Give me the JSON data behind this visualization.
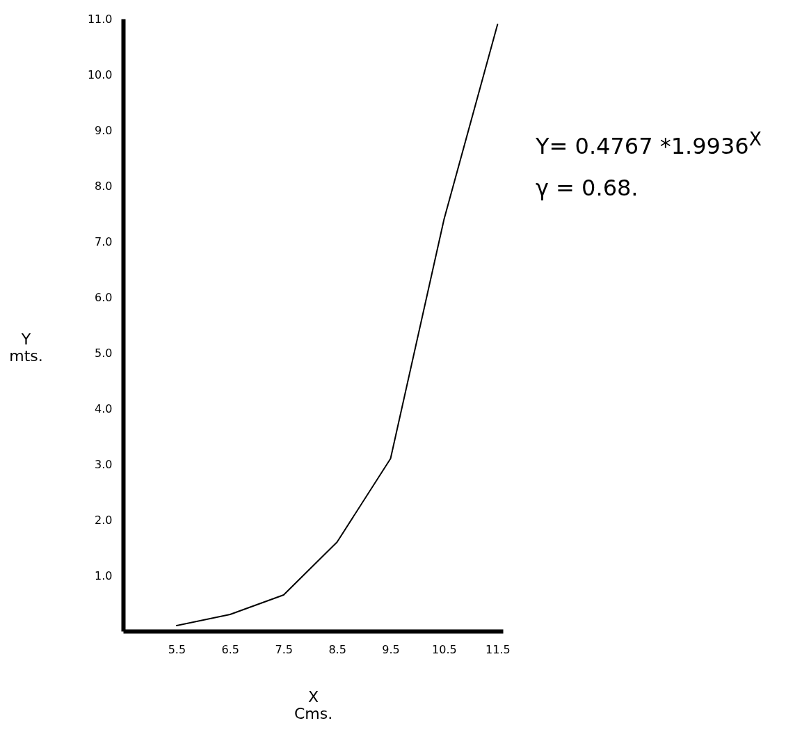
{
  "chart_data": {
    "type": "line",
    "xlabel": "X Cms.",
    "ylabel": "Y mts.",
    "x": [
      5.5,
      6.5,
      7.5,
      8.5,
      9.5,
      10.5,
      11.5
    ],
    "values": [
      0.1,
      0.3,
      0.65,
      1.6,
      3.1,
      7.4,
      10.9
    ],
    "color": "#000000",
    "xlim": [
      4.5,
      11.6
    ],
    "xticks": [
      5.5,
      6.5,
      7.5,
      8.5,
      9.5,
      10.5,
      11.5
    ],
    "ylim": [
      0,
      11.0
    ],
    "yticks": [
      {
        "value": 1,
        "label": "1.0"
      },
      {
        "value": 2,
        "label": "2.0"
      },
      {
        "value": 3,
        "label": "3.0"
      },
      {
        "value": 4,
        "label": "4.0"
      },
      {
        "value": 5,
        "label": "5.0"
      },
      {
        "value": 6,
        "label": "6.0"
      },
      {
        "value": 7,
        "label": "7.0"
      },
      {
        "value": 8,
        "label": "8.0"
      },
      {
        "value": 9,
        "label": "9.0"
      },
      {
        "value": 10,
        "label": "10.0"
      },
      {
        "value": 11,
        "label": "11.0"
      }
    ],
    "annotations": [
      "Y= 0.4767 *1.9936$^{X}$",
      "γ = 0.68."
    ]
  }
}
